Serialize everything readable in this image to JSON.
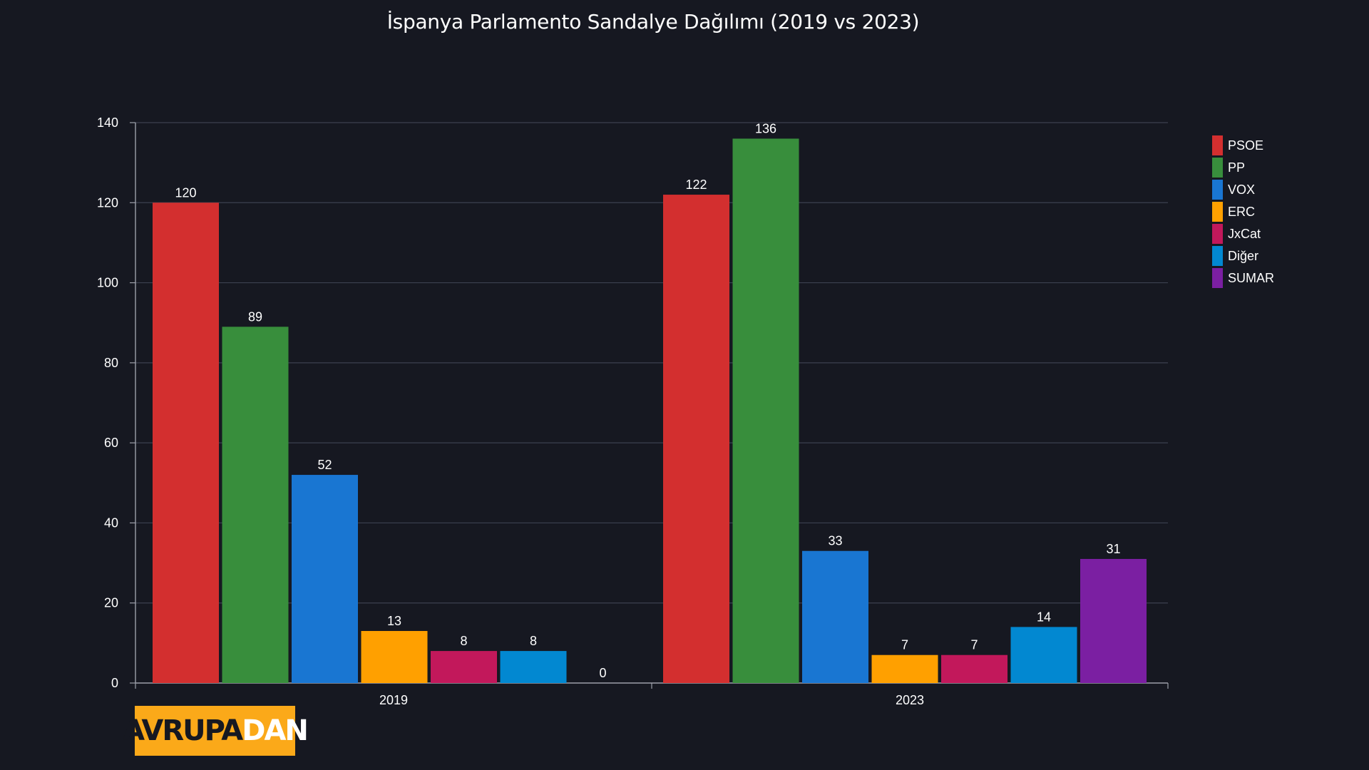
{
  "chart_data": {
    "type": "bar",
    "title": "İspanya Parlamento Sandalye Dağılımı (2019 vs 2023)",
    "categories": [
      "2019",
      "2023"
    ],
    "series": [
      {
        "name": "PSOE",
        "color": "#d32f2f",
        "values": [
          120,
          122
        ]
      },
      {
        "name": "PP",
        "color": "#388e3c",
        "values": [
          89,
          136
        ]
      },
      {
        "name": "VOX",
        "color": "#1976d2",
        "values": [
          52,
          33
        ]
      },
      {
        "name": "ERC",
        "color": "#ffa000",
        "values": [
          13,
          7
        ]
      },
      {
        "name": "JxCat",
        "color": "#c2185b",
        "values": [
          8,
          7
        ]
      },
      {
        "name": "Diğer",
        "color": "#0288d1",
        "values": [
          8,
          14
        ]
      },
      {
        "name": "SUMAR",
        "color": "#7b1fa2",
        "values": [
          0,
          31
        ]
      }
    ],
    "ylim": [
      0,
      140
    ],
    "yticks": [
      0,
      20,
      40,
      60,
      80,
      100,
      120,
      140
    ],
    "xlabel": "",
    "ylabel": "",
    "grid": true,
    "legend_position": "right",
    "data_labels": true
  },
  "logo": {
    "part1": "AVRUPA",
    "part2": "DAN",
    "bg_color": "#fba919"
  }
}
